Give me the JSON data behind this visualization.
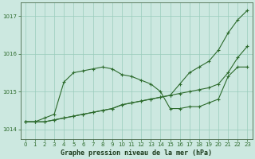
{
  "xlabel": "Graphe pression niveau de la mer (hPa)",
  "background_color": "#cce8e0",
  "grid_color": "#99ccbb",
  "line_color": "#2d6b2d",
  "x_ticks": [
    0,
    1,
    2,
    3,
    4,
    5,
    6,
    7,
    8,
    9,
    10,
    11,
    12,
    13,
    14,
    15,
    16,
    17,
    18,
    19,
    20,
    21,
    22,
    23
  ],
  "ylim": [
    1013.75,
    1017.35
  ],
  "yticks": [
    1014,
    1015,
    1016,
    1017
  ],
  "series": [
    {
      "x": [
        0,
        1,
        2,
        3,
        4,
        5,
        6,
        7,
        8,
        9,
        10,
        11,
        12,
        13,
        14,
        15,
        16,
        17,
        18,
        19,
        20,
        21,
        22,
        23
      ],
      "y": [
        1014.2,
        1014.2,
        1014.2,
        1014.25,
        1014.3,
        1014.35,
        1014.4,
        1014.45,
        1014.5,
        1014.55,
        1014.65,
        1014.7,
        1014.75,
        1014.8,
        1014.85,
        1014.9,
        1014.95,
        1015.0,
        1015.05,
        1015.1,
        1015.2,
        1015.5,
        1015.9,
        1016.2
      ],
      "marker": "+"
    },
    {
      "x": [
        0,
        1,
        2,
        3,
        4,
        5,
        6,
        7,
        8,
        9,
        10,
        11,
        12,
        13,
        14,
        15,
        16,
        17,
        18,
        19,
        20,
        21,
        22,
        23
      ],
      "y": [
        1014.2,
        1014.2,
        1014.3,
        1014.4,
        1015.25,
        1015.5,
        1015.55,
        1015.6,
        1015.65,
        1015.6,
        1015.45,
        1015.4,
        1015.3,
        1015.2,
        1015.0,
        1014.55,
        1014.55,
        1014.6,
        1014.6,
        1014.7,
        1014.8,
        1015.4,
        1015.65,
        1015.65
      ],
      "marker": "+"
    },
    {
      "x": [
        0,
        1,
        2,
        3,
        4,
        5,
        6,
        7,
        8,
        9,
        10,
        11,
        12,
        13,
        14,
        15,
        16,
        17,
        18,
        19,
        20,
        21,
        22,
        23
      ],
      "y": [
        1014.2,
        1014.2,
        1014.2,
        1014.25,
        1014.3,
        1014.35,
        1014.4,
        1014.45,
        1014.5,
        1014.55,
        1014.65,
        1014.7,
        1014.75,
        1014.8,
        1014.85,
        1014.9,
        1015.2,
        1015.5,
        1015.65,
        1015.8,
        1016.1,
        1016.55,
        1016.9,
        1017.15
      ],
      "marker": "+"
    }
  ]
}
